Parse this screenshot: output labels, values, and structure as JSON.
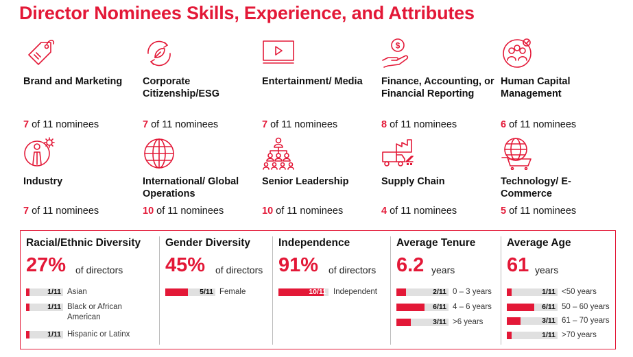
{
  "title": "Director Nominees Skills, Experience, and Attributes",
  "skills": [
    {
      "label": "Brand and Marketing",
      "count": "7",
      "rest": " of 11 nominees",
      "icon": "price-tag-icon"
    },
    {
      "label": "Corporate Citizenship/ESG",
      "count": "7",
      "rest": " of 11 nominees",
      "icon": "recycle-leaf-icon"
    },
    {
      "label": "Entertainment/ Media",
      "count": "7",
      "rest": " of 11 nominees",
      "icon": "video-player-icon"
    },
    {
      "label": "Finance, Accounting, or Financial Reporting",
      "count": "8",
      "rest": " of 11 nominees",
      "icon": "hand-dollar-icon"
    },
    {
      "label": "Human Capital Management",
      "count": "6",
      "rest": " of 11 nominees",
      "icon": "people-group-icon"
    },
    {
      "label": "Industry",
      "count": "7",
      "rest": " of 11 nominees",
      "icon": "person-gear-icon"
    },
    {
      "label": "International/ Global Operations",
      "count": "10",
      "rest": " of 11 nominees",
      "icon": "globe-icon"
    },
    {
      "label": "Senior Leadership",
      "count": "10",
      "rest": " of 11 nominees",
      "icon": "org-chart-icon"
    },
    {
      "label": "Supply Chain",
      "count": "4",
      "rest": " of 11 nominees",
      "icon": "factory-truck-icon"
    },
    {
      "label": "Technology/ E-Commerce",
      "count": "5",
      "rest": " of 11 nominees",
      "icon": "globe-cart-icon"
    }
  ],
  "diversity": [
    {
      "heading": "Racial/Ethnic Diversity",
      "big": "27%",
      "sub": "of directors",
      "rows": [
        {
          "val": "1/11",
          "frac": 0.0909,
          "label": "Asian"
        },
        {
          "val": "1/11",
          "frac": 0.0909,
          "label": "Black or African American"
        },
        {
          "val": "1/11",
          "frac": 0.0909,
          "label": "Hispanic or Latinx"
        }
      ]
    },
    {
      "heading": "Gender Diversity",
      "big": "45%",
      "sub": "of directors",
      "rows": [
        {
          "val": "5/11",
          "frac": 0.4545,
          "label": "Female"
        }
      ]
    },
    {
      "heading": "Independence",
      "big": "91%",
      "sub": "of directors",
      "rows": [
        {
          "val": "10/11",
          "frac": 0.9091,
          "label": "Independent"
        }
      ]
    },
    {
      "heading": "Average Tenure",
      "big": "6.2",
      "sub": "years",
      "rows": [
        {
          "val": "2/11",
          "frac": 0.1818,
          "label": "0 – 3 years"
        },
        {
          "val": "6/11",
          "frac": 0.5455,
          "label": "4 – 6 years"
        },
        {
          "val": "3/11",
          "frac": 0.2727,
          "label": ">6 years"
        }
      ]
    },
    {
      "heading": "Average Age",
      "big": "61",
      "sub": "years",
      "rows": [
        {
          "val": "1/11",
          "frac": 0.0909,
          "label": "<50 years"
        },
        {
          "val": "6/11",
          "frac": 0.5455,
          "label": "50 – 60 years"
        },
        {
          "val": "3/11",
          "frac": 0.2727,
          "label": "61 – 70 years"
        },
        {
          "val": "1/11",
          "frac": 0.0909,
          "label": ">70 years"
        }
      ]
    }
  ],
  "colors": {
    "accent": "#e31837",
    "track": "#e0e0e0"
  }
}
